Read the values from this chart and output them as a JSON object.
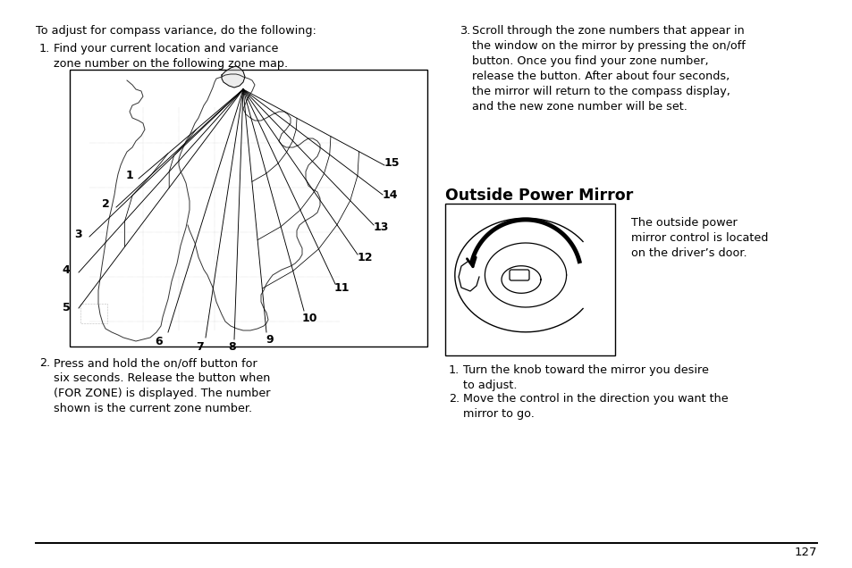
{
  "bg_color": "#ffffff",
  "text_color": "#000000",
  "title": "Outside Power Mirror",
  "page_number": "127",
  "intro_text": "To adjust for compass variance, do the following:",
  "step1_label": "1.",
  "step1_text": "Find your current location and variance\nzone number on the following zone map.",
  "step2_label": "2.",
  "step2_text": "Press and hold the on/off button for\nsix seconds. Release the button when\n(FOR ZONE) is displayed. The number\nshown is the current zone number.",
  "step3_label": "3.",
  "step3_text": "Scroll through the zone numbers that appear in\nthe window on the mirror by pressing the on/off\nbutton. Once you find your zone number,\nrelease the button. After about four seconds,\nthe mirror will return to the compass display,\nand the new zone number will be set.",
  "right_step1_label": "1.",
  "right_step1_text": "Turn the knob toward the mirror you desire\nto adjust.",
  "right_step2_label": "2.",
  "right_step2_text": "Move the control in the direction you want the\nmirror to go.",
  "outside_mirror_desc": "The outside power\nmirror control is located\non the driver’s door.",
  "font_size_body": 9.2,
  "font_size_title": 12.5,
  "font_size_page": 9.5
}
